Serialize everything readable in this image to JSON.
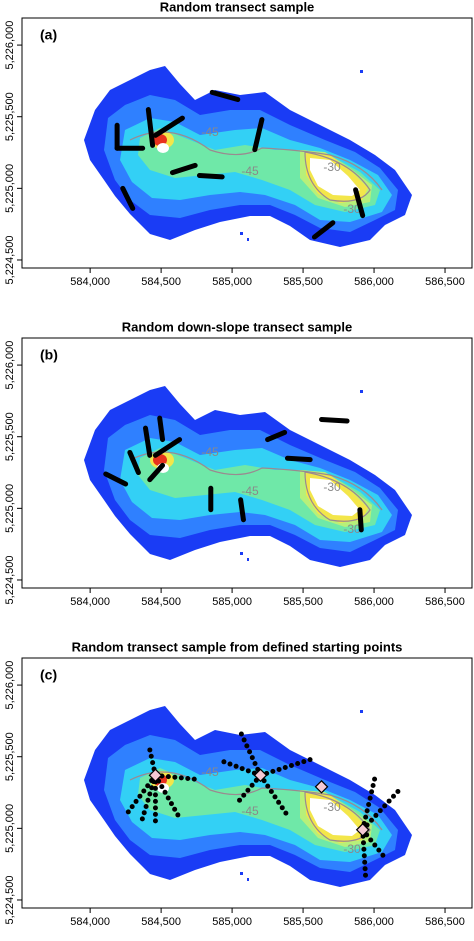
{
  "chart_data": [
    {
      "type": "transect-map",
      "title": "Random transect sample",
      "label": "(a)",
      "xlim": [
        583520,
        586690
      ],
      "ylim": [
        5224444,
        5226189
      ],
      "xticks": [
        {
          "value": 584000,
          "label": "584,000"
        },
        {
          "value": 584500,
          "label": "584,500"
        },
        {
          "value": 585000,
          "label": "585,000"
        },
        {
          "value": 585500,
          "label": "585,500"
        },
        {
          "value": 586000,
          "label": "586,000"
        },
        {
          "value": 586500,
          "label": "586,500"
        }
      ],
      "yticks": [
        {
          "value": 5224500,
          "label": "5,224,500"
        },
        {
          "value": 5225000,
          "label": "5,225,000"
        },
        {
          "value": 5225500,
          "label": "5,225,500"
        },
        {
          "value": 5226000,
          "label": "5,226,000"
        }
      ],
      "contour_labels": [
        "-45",
        "-30",
        "-45",
        "-30"
      ],
      "transects": [
        {
          "x": [
            584190,
            584190
          ],
          "y": [
            5225440,
            5225280
          ]
        },
        {
          "x": [
            584190,
            584370
          ],
          "y": [
            5225280,
            5225280
          ]
        },
        {
          "x": [
            584410,
            584440
          ],
          "y": [
            5225550,
            5225300
          ]
        },
        {
          "x": [
            584460,
            584650
          ],
          "y": [
            5225370,
            5225490
          ]
        },
        {
          "x": [
            584860,
            585040
          ],
          "y": [
            5225670,
            5225620
          ]
        },
        {
          "x": [
            584580,
            584740
          ],
          "y": [
            5225110,
            5225160
          ]
        },
        {
          "x": [
            584770,
            584930
          ],
          "y": [
            5225090,
            5225080
          ]
        },
        {
          "x": [
            584230,
            584300
          ],
          "y": [
            5225000,
            5224860
          ]
        },
        {
          "x": [
            585160,
            585210
          ],
          "y": [
            5225270,
            5225480
          ]
        },
        {
          "x": [
            585870,
            585920
          ],
          "y": [
            5224990,
            5224810
          ]
        },
        {
          "x": [
            585580,
            585710
          ],
          "y": [
            5224660,
            5224760
          ]
        }
      ]
    },
    {
      "type": "transect-map",
      "title": "Random down-slope transect sample",
      "label": "(b)",
      "xlim": [
        583520,
        586690
      ],
      "ylim": [
        5224444,
        5226189
      ],
      "xticks": [
        {
          "value": 584000,
          "label": "584,000"
        },
        {
          "value": 584500,
          "label": "584,500"
        },
        {
          "value": 585000,
          "label": "585,000"
        },
        {
          "value": 585500,
          "label": "585,500"
        },
        {
          "value": 586000,
          "label": "586,000"
        },
        {
          "value": 586500,
          "label": "586,500"
        }
      ],
      "yticks": [
        {
          "value": 5224500,
          "label": "5,224,500"
        },
        {
          "value": 5225000,
          "label": "5,225,000"
        },
        {
          "value": 5225500,
          "label": "5,225,500"
        },
        {
          "value": 5226000,
          "label": "5,226,000"
        }
      ],
      "contour_labels": [
        "-45",
        "-30",
        "-45",
        "-30"
      ],
      "transects": [
        {
          "x": [
            584110,
            584250
          ],
          "y": [
            5225240,
            5225170
          ]
        },
        {
          "x": [
            584280,
            584340
          ],
          "y": [
            5225390,
            5225250
          ]
        },
        {
          "x": [
            584390,
            584420
          ],
          "y": [
            5225560,
            5225370
          ]
        },
        {
          "x": [
            584460,
            584630
          ],
          "y": [
            5225370,
            5225480
          ]
        },
        {
          "x": [
            584420,
            584510
          ],
          "y": [
            5225200,
            5225300
          ]
        },
        {
          "x": [
            584490,
            584510
          ],
          "y": [
            5225630,
            5225480
          ]
        },
        {
          "x": [
            584850,
            584850
          ],
          "y": [
            5225140,
            5224990
          ]
        },
        {
          "x": [
            585060,
            585080
          ],
          "y": [
            5225060,
            5224920
          ]
        },
        {
          "x": [
            585250,
            585370
          ],
          "y": [
            5225480,
            5225530
          ]
        },
        {
          "x": [
            585390,
            585550
          ],
          "y": [
            5225350,
            5225340
          ]
        },
        {
          "x": [
            585630,
            585810
          ],
          "y": [
            5225620,
            5225610
          ]
        },
        {
          "x": [
            585900,
            585910
          ],
          "y": [
            5224990,
            5224850
          ]
        }
      ]
    },
    {
      "type": "transect-map",
      "title": "Random transect sample from defined starting points",
      "label": "(c)",
      "xlim": [
        583520,
        586690
      ],
      "ylim": [
        5224444,
        5226189
      ],
      "xticks": [
        {
          "value": 584000,
          "label": "584,000"
        },
        {
          "value": 584500,
          "label": "584,500"
        },
        {
          "value": 585000,
          "label": "585,000"
        },
        {
          "value": 585500,
          "label": "585,500"
        },
        {
          "value": 586000,
          "label": "586,000"
        },
        {
          "value": 586500,
          "label": "586,500"
        }
      ],
      "yticks": [
        {
          "value": 5224500,
          "label": "5,224,500"
        },
        {
          "value": 5225000,
          "label": "5,225,000"
        },
        {
          "value": 5225500,
          "label": "5,225,500"
        },
        {
          "value": 5226000,
          "label": "5,226,000"
        }
      ],
      "contour_labels": [
        "-45",
        "-30",
        "-45",
        "-30"
      ],
      "dotted": true,
      "starts": {
        "x": [
          584460,
          585200,
          585630,
          585920
        ],
        "y": [
          5225370,
          5225370,
          5225290,
          5224990
        ]
      },
      "transects": [
        {
          "x": [
            584460,
            584250
          ],
          "y": [
            5225370,
            5225090
          ]
        },
        {
          "x": [
            584460,
            584360
          ],
          "y": [
            5225370,
            5225040
          ]
        },
        {
          "x": [
            584460,
            584460
          ],
          "y": [
            5225370,
            5225050
          ]
        },
        {
          "x": [
            584460,
            584620
          ],
          "y": [
            5225370,
            5225090
          ]
        },
        {
          "x": [
            584460,
            584770
          ],
          "y": [
            5225370,
            5225340
          ]
        },
        {
          "x": [
            584460,
            584420
          ],
          "y": [
            5225370,
            5225550
          ]
        },
        {
          "x": [
            585200,
            585030
          ],
          "y": [
            5225370,
            5225170
          ]
        },
        {
          "x": [
            585200,
            585390
          ],
          "y": [
            5225370,
            5225090
          ]
        },
        {
          "x": [
            585200,
            585550
          ],
          "y": [
            5225370,
            5225480
          ]
        },
        {
          "x": [
            585200,
            585060
          ],
          "y": [
            5225370,
            5225670
          ]
        },
        {
          "x": [
            585200,
            584900
          ],
          "y": [
            5225370,
            5225480
          ]
        },
        {
          "x": [
            585920,
            586010
          ],
          "y": [
            5224990,
            5225370
          ]
        },
        {
          "x": [
            585920,
            586180
          ],
          "y": [
            5224990,
            5225270
          ]
        },
        {
          "x": [
            585920,
            586080
          ],
          "y": [
            5224990,
            5224790
          ]
        },
        {
          "x": [
            585920,
            585940
          ],
          "y": [
            5224990,
            5224670
          ]
        }
      ]
    }
  ]
}
